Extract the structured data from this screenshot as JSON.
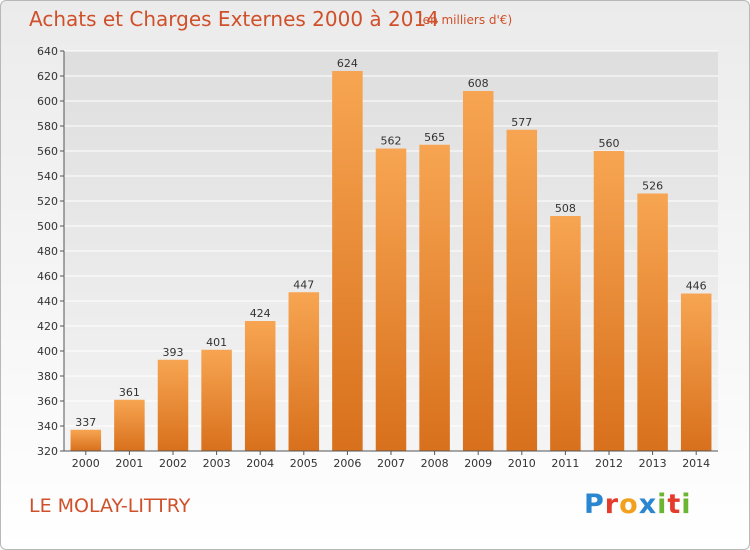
{
  "chart_data": {
    "type": "bar",
    "title": "Achats et Charges Externes 2000 à 2014",
    "subtitle": "(en milliers d'€)",
    "categories": [
      "2000",
      "2001",
      "2002",
      "2003",
      "2004",
      "2005",
      "2006",
      "2007",
      "2008",
      "2009",
      "2010",
      "2011",
      "2012",
      "2013",
      "2014"
    ],
    "values": [
      337,
      361,
      393,
      401,
      424,
      447,
      624,
      562,
      565,
      608,
      577,
      508,
      560,
      526,
      446
    ],
    "ylim": [
      320,
      640
    ],
    "yticks": [
      320,
      340,
      360,
      380,
      400,
      420,
      440,
      460,
      480,
      500,
      520,
      540,
      560,
      580,
      600,
      620,
      640
    ],
    "xlabel": "",
    "ylabel": "",
    "grid": true,
    "bar_color": "#f0902e"
  },
  "location": "LE MOLAY-LITTRY",
  "logo": {
    "letters": [
      "P",
      "r",
      "o",
      "x",
      "i",
      "t",
      "i"
    ]
  }
}
